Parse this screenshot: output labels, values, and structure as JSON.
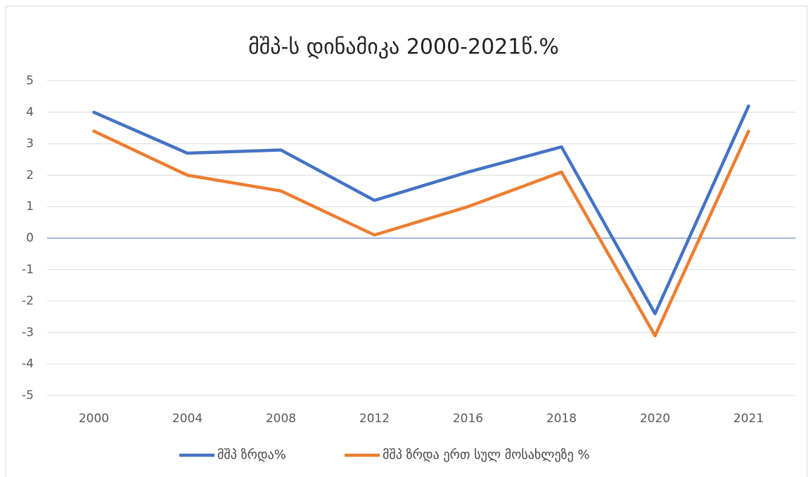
{
  "chart_data": {
    "type": "line",
    "title": "მშპ-ს დინამიკა 2000-2021წ.%",
    "categories": [
      "2000",
      "2004",
      "2008",
      "2012",
      "2016",
      "2018",
      "2020",
      "2021"
    ],
    "series": [
      {
        "name": "მშპ ზრდა%",
        "color": "#4472c4",
        "values": [
          4.0,
          2.7,
          2.8,
          1.2,
          2.1,
          2.9,
          -2.4,
          4.2
        ]
      },
      {
        "name": "მშპ ზრდა ერთ სულ მოსახლეზე %",
        "color": "#ed7d31",
        "values": [
          3.4,
          2.0,
          1.5,
          0.1,
          1.0,
          2.1,
          -3.1,
          3.4
        ]
      }
    ],
    "ylim": [
      -5,
      5
    ],
    "yticks": [
      -5,
      -4,
      -3,
      -2,
      -1,
      0,
      1,
      2,
      3,
      4,
      5
    ],
    "grid": true,
    "legend": "bottom"
  }
}
